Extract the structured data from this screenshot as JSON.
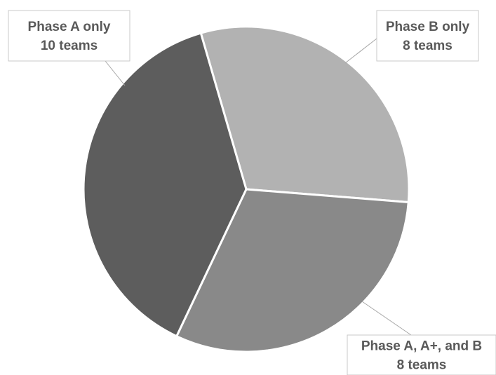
{
  "chart_data": {
    "type": "pie",
    "title": "",
    "legend": "none",
    "slices": [
      {
        "name": "Phase B only",
        "value": 8,
        "label": [
          "Phase B only",
          "8 teams"
        ],
        "color": "#b2b2b2"
      },
      {
        "name": "Phase A, A+, and B",
        "value": 8,
        "label": [
          "Phase A, A+, and B",
          "8 teams"
        ],
        "color": "#898989"
      },
      {
        "name": "Phase A only",
        "value": 10,
        "label": [
          "Phase A only",
          "10 teams"
        ],
        "color": "#5d5d5d"
      }
    ]
  }
}
